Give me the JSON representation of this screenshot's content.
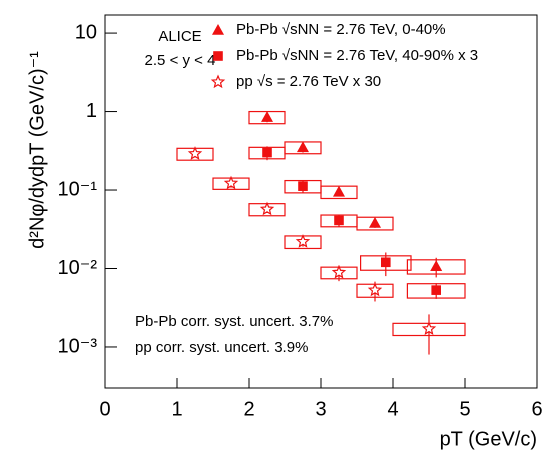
{
  "chart_data": {
    "type": "scatter",
    "xlabel": "pT (GeV/c)",
    "ylabel": "d²Nφ/dydpT (GeV/c)⁻¹",
    "annotations": [
      "ALICE",
      "2.5 < y < 4",
      "Pb-Pb corr. syst. uncert. 3.7%",
      "pp corr. syst. uncert. 3.9%"
    ],
    "xlim": [
      0,
      6
    ],
    "xticks": [
      0,
      1,
      2,
      3,
      4,
      5,
      6
    ],
    "ylim": [
      0.0003,
      17
    ],
    "log_y": true,
    "yticks": [
      {
        "value": 0.001,
        "label": "10⁻³"
      },
      {
        "value": 0.01,
        "label": "10⁻²"
      },
      {
        "value": 0.1,
        "label": "10⁻¹"
      },
      1,
      10
    ],
    "series": [
      {
        "name": "Pb-Pb √sNN = 2.76 TeV, 0-40%",
        "color": "#ee1111",
        "marker": "triangle",
        "x": [
          2.25,
          2.75,
          3.25,
          3.75,
          4.6
        ],
        "xerr": [
          0.25,
          0.25,
          0.25,
          0.25,
          0.4
        ],
        "values": [
          0.85,
          0.35,
          0.095,
          0.038,
          0.0107
        ],
        "syst": [
          0.15,
          0.06,
          0.017,
          0.007,
          0.0022
        ],
        "stat": [
          0.12,
          0.05,
          0.012,
          0.005,
          0.003
        ]
      },
      {
        "name": "Pb-Pb √sNN = 2.76 TeV, 40-90% x 3",
        "color": "#ee1111",
        "marker": "square",
        "x": [
          2.25,
          2.75,
          3.25,
          3.9,
          4.6
        ],
        "xerr": [
          0.25,
          0.25,
          0.25,
          0.35,
          0.4
        ],
        "values": [
          0.3,
          0.112,
          0.041,
          0.012,
          0.0053
        ],
        "syst": [
          0.05,
          0.02,
          0.007,
          0.0025,
          0.0011
        ],
        "stat": [
          0.06,
          0.02,
          0.007,
          0.004,
          0.0012
        ]
      },
      {
        "name": "pp √s = 2.76 TeV x 30",
        "color": "#ee1111",
        "marker": "star",
        "x": [
          1.25,
          1.75,
          2.25,
          2.75,
          3.25,
          3.75,
          4.5
        ],
        "xerr": [
          0.25,
          0.25,
          0.25,
          0.25,
          0.25,
          0.25,
          0.5
        ],
        "values": [
          0.29,
          0.122,
          0.057,
          0.022,
          0.0089,
          0.0053,
          0.0017
        ],
        "syst": [
          0.05,
          0.02,
          0.01,
          0.004,
          0.0015,
          0.001,
          0.0003
        ],
        "stat": [
          0.03,
          0.015,
          0.006,
          0.003,
          0.002,
          0.0015,
          0.0009
        ]
      }
    ]
  }
}
